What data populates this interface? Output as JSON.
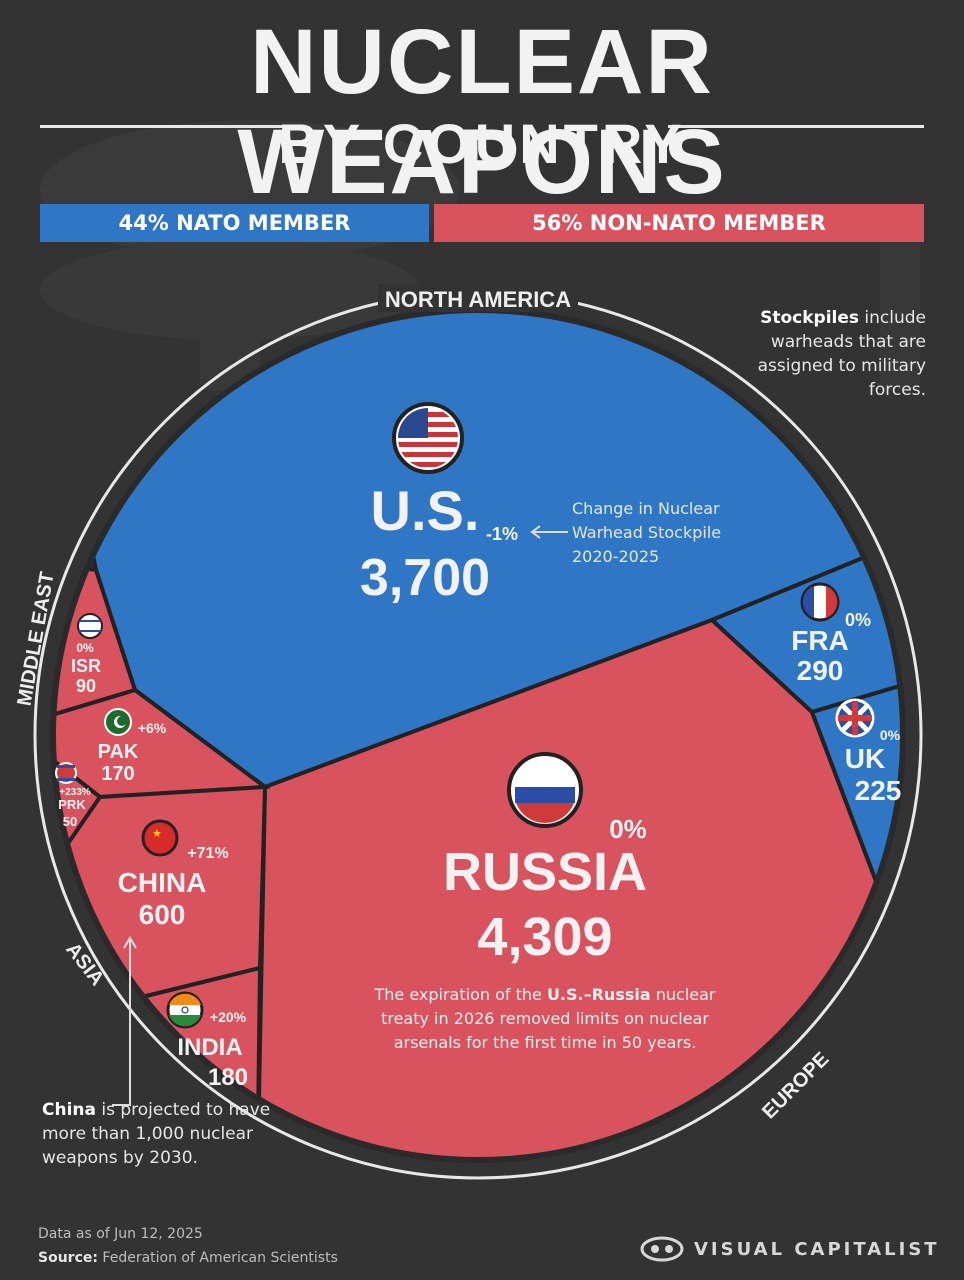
{
  "title": "NUCLEAR WEAPONS",
  "subtitle": "BY COUNTRY",
  "legend": {
    "nato_label": "44% NATO MEMBER",
    "non_nato_label": "56% NON-NATO MEMBER",
    "nato_color": "#2f77c4",
    "non_nato_color": "#d9535f"
  },
  "notes": {
    "stockpile_bold": "Stockpiles",
    "stockpile_text": "include warheads that are assigned to military forces.",
    "change_note": "Change in Nuclear Warhead Stockpile 2020-2025",
    "china_bold": "China",
    "china_text": "is projected to have more than 1,000 nuclear weapons by 2030.",
    "russia_note_pre": "The expiration of the",
    "russia_note_bold": "U.S.–Russia",
    "russia_note_post": "nuclear treaty in 2026 removed limits on nuclear arsenals for the first time in 50 years."
  },
  "regions": [
    "NORTH AMERICA",
    "EUROPE",
    "ASIA",
    "MIDDLE EAST"
  ],
  "footer": {
    "date": "Data as of Jun 12, 2025",
    "source_label": "Source:",
    "source_text": "Federation of American Scientists",
    "brand": "VISUAL CAPITALIST"
  },
  "chart_data": {
    "type": "voronoi-treemap",
    "title": "NUCLEAR WEAPONS BY COUNTRY",
    "unit": "warheads",
    "series": [
      {
        "country": "U.S.",
        "value": 3700,
        "change": "-1%",
        "nato": true,
        "region": "NORTH AMERICA",
        "flag": "us-flag-icon"
      },
      {
        "country": "RUSSIA",
        "value": 4309,
        "change": "0%",
        "nato": false,
        "region": "EUROPE",
        "flag": "russia-flag-icon"
      },
      {
        "country": "FRA",
        "value": 290,
        "change": "0%",
        "nato": true,
        "region": "EUROPE",
        "flag": "france-flag-icon"
      },
      {
        "country": "UK",
        "value": 225,
        "change": "0%",
        "nato": true,
        "region": "EUROPE",
        "flag": "uk-flag-icon"
      },
      {
        "country": "CHINA",
        "value": 600,
        "change": "+71%",
        "nato": false,
        "region": "ASIA",
        "flag": "china-flag-icon"
      },
      {
        "country": "INDIA",
        "value": 180,
        "change": "+20%",
        "nato": false,
        "region": "ASIA",
        "flag": "india-flag-icon"
      },
      {
        "country": "PAK",
        "value": 170,
        "change": "+6%",
        "nato": false,
        "region": "ASIA",
        "flag": "pakistan-flag-icon"
      },
      {
        "country": "PRK",
        "value": 50,
        "change": "+233%",
        "nato": false,
        "region": "ASIA",
        "flag": "north-korea-flag-icon"
      },
      {
        "country": "ISR",
        "value": 90,
        "change": "0%",
        "nato": false,
        "region": "MIDDLE EAST",
        "flag": "israel-flag-icon"
      }
    ],
    "nato_share": "44%",
    "non_nato_share": "56%"
  }
}
